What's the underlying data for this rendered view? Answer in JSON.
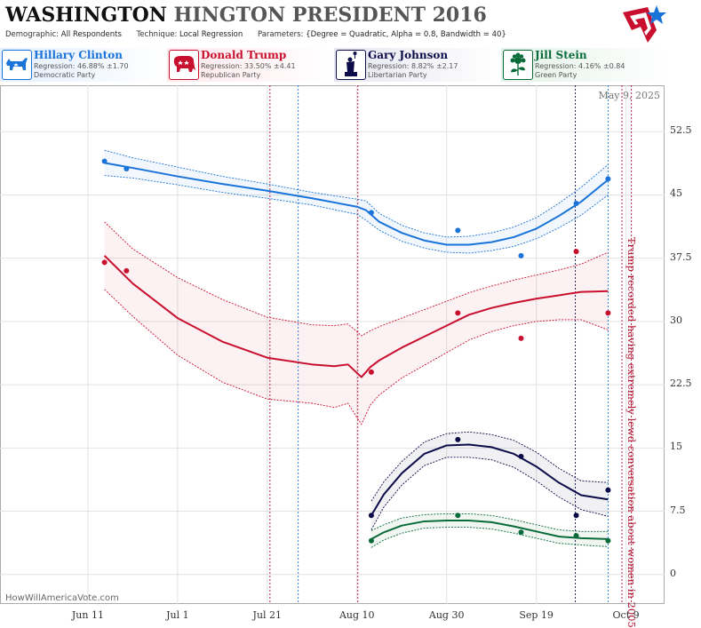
{
  "header": {
    "title_main": "WASHINGTON",
    "title_sub": "HINGTON PRESIDENT 2016",
    "demographic_label": "Demographic:",
    "demographic_value": "All Respondents",
    "technique_label": "Technique:",
    "technique_value": "Local Regression",
    "parameters_label": "Parameters:",
    "parameters_value": "{Degree = Quadratic, Alpha = 0.8, Bandwidth = 40}"
  },
  "legend": [
    {
      "name": "Hillary Clinton",
      "regression": "Regression: 46.88% ±1.70",
      "party": "Democratic Party",
      "color": "#1a73d8",
      "icon": "donkey-icon"
    },
    {
      "name": "Donald Trump",
      "regression": "Regression: 33.50% ±4.41",
      "party": "Republican Party",
      "color": "#c8102e",
      "icon": "elephant-icon"
    },
    {
      "name": "Gary Johnson",
      "regression": "Regression: 8.82% ±2.17",
      "party": "Libertarian Party",
      "color": "#0c0c4a",
      "icon": "statue-of-liberty-icon"
    },
    {
      "name": "Jill Stein",
      "regression": "Regression: 4.16% ±0.84",
      "party": "Green Party",
      "color": "#0a6b3a",
      "icon": "sunflower-icon"
    }
  ],
  "date_label": "May 9, 2025",
  "watermark": "HowWillAmericaVote.com",
  "annotation": "Trump recorded having extremely lewd conversation about women in 2005",
  "chart_data": {
    "type": "line",
    "x_ticks": [
      {
        "label": "Jun 11",
        "day": 0
      },
      {
        "label": "Jul 1",
        "day": 20
      },
      {
        "label": "Jul 21",
        "day": 40
      },
      {
        "label": "Aug 10",
        "day": 60
      },
      {
        "label": "Aug 30",
        "day": 80
      },
      {
        "label": "Sep 19",
        "day": 100
      },
      {
        "label": "Oct 9",
        "day": 120
      }
    ],
    "y_ticks": [
      0,
      7.5,
      15,
      22.5,
      30,
      37.5,
      45,
      52.5
    ],
    "ylim": [
      -3.5,
      58
    ],
    "xlim": [
      -19.6,
      128.6
    ],
    "vertical_markers": [
      {
        "day": 40.6,
        "color": "#b01030"
      },
      {
        "day": 46.9,
        "color": "#1a73d8"
      },
      {
        "day": 60.2,
        "color": "#b01030"
      },
      {
        "day": 108.7,
        "color": "#0c0c4a"
      },
      {
        "day": 116,
        "color": "#1a73d8"
      },
      {
        "day": 119.1,
        "color": "#b01030"
      },
      {
        "day": 121.2,
        "color": "#b01030"
      }
    ],
    "series": [
      {
        "name": "Hillary Clinton",
        "color": "#1a73d8",
        "points": [
          [
            3.7,
            49.0
          ],
          [
            8.6,
            48.1
          ],
          [
            63.2,
            42.9
          ],
          [
            82.5,
            40.8
          ],
          [
            96.6,
            37.8
          ],
          [
            108.9,
            44.0
          ],
          [
            116,
            46.9
          ]
        ],
        "fit": [
          [
            3.7,
            48.8
          ],
          [
            10,
            48.2
          ],
          [
            20,
            47.2
          ],
          [
            30,
            46.3
          ],
          [
            40,
            45.5
          ],
          [
            50,
            44.6
          ],
          [
            60,
            43.6
          ],
          [
            62,
            43.2
          ],
          [
            65,
            41.8
          ],
          [
            70,
            40.5
          ],
          [
            75,
            39.6
          ],
          [
            80,
            39.1
          ],
          [
            85,
            39.1
          ],
          [
            90,
            39.4
          ],
          [
            95,
            40.0
          ],
          [
            100,
            41.0
          ],
          [
            105,
            42.5
          ],
          [
            110,
            44.2
          ],
          [
            116,
            46.8
          ]
        ],
        "band": [
          [
            3.7,
            50.3,
            47.3
          ],
          [
            10,
            49.4,
            47.0
          ],
          [
            20,
            48.3,
            46.2
          ],
          [
            30,
            47.2,
            45.3
          ],
          [
            40,
            46.3,
            44.6
          ],
          [
            50,
            45.3,
            43.8
          ],
          [
            60,
            44.5,
            42.7
          ],
          [
            62,
            44.3,
            42.0
          ],
          [
            65,
            42.8,
            40.8
          ],
          [
            70,
            41.4,
            39.5
          ],
          [
            75,
            40.5,
            38.7
          ],
          [
            80,
            40.0,
            38.2
          ],
          [
            85,
            40.1,
            38.1
          ],
          [
            90,
            40.5,
            38.4
          ],
          [
            95,
            41.2,
            38.9
          ],
          [
            100,
            42.3,
            39.8
          ],
          [
            105,
            44.0,
            41.1
          ],
          [
            110,
            45.9,
            42.6
          ],
          [
            116,
            48.6,
            45.0
          ]
        ]
      },
      {
        "name": "Donald Trump",
        "color": "#c8102e",
        "points": [
          [
            3.7,
            37.0
          ],
          [
            8.6,
            36.0
          ],
          [
            63.2,
            24.0
          ],
          [
            82.5,
            31.0
          ],
          [
            96.6,
            28.0
          ],
          [
            108.9,
            38.3
          ],
          [
            116,
            31.0
          ]
        ],
        "fit": [
          [
            3.7,
            37.8
          ],
          [
            10,
            34.5
          ],
          [
            20,
            30.4
          ],
          [
            30,
            27.6
          ],
          [
            40,
            25.7
          ],
          [
            50,
            24.9
          ],
          [
            55,
            24.7
          ],
          [
            58,
            24.9
          ],
          [
            60,
            23.9
          ],
          [
            61,
            23.4
          ],
          [
            63,
            24.6
          ],
          [
            65,
            25.4
          ],
          [
            70,
            26.9
          ],
          [
            75,
            28.2
          ],
          [
            80,
            29.5
          ],
          [
            85,
            30.8
          ],
          [
            90,
            31.6
          ],
          [
            95,
            32.2
          ],
          [
            100,
            32.7
          ],
          [
            105,
            33.1
          ],
          [
            110,
            33.5
          ],
          [
            116,
            33.6
          ]
        ],
        "band": [
          [
            3.7,
            41.8,
            33.8
          ],
          [
            10,
            38.6,
            30.6
          ],
          [
            20,
            35.2,
            26.0
          ],
          [
            30,
            32.6,
            22.8
          ],
          [
            40,
            30.5,
            20.8
          ],
          [
            50,
            29.6,
            20.3
          ],
          [
            55,
            29.5,
            19.8
          ],
          [
            58,
            29.7,
            20.3
          ],
          [
            60,
            28.8,
            18.6
          ],
          [
            61,
            28.3,
            17.8
          ],
          [
            63,
            28.9,
            20.1
          ],
          [
            65,
            29.4,
            21.3
          ],
          [
            70,
            30.4,
            23.3
          ],
          [
            75,
            31.4,
            24.8
          ],
          [
            80,
            32.4,
            26.3
          ],
          [
            85,
            33.4,
            27.8
          ],
          [
            90,
            34.2,
            28.8
          ],
          [
            95,
            34.9,
            29.5
          ],
          [
            100,
            35.5,
            30.0
          ],
          [
            105,
            36.1,
            30.2
          ],
          [
            110,
            36.8,
            30.2
          ],
          [
            116,
            38.2,
            29.0
          ]
        ]
      },
      {
        "name": "Gary Johnson",
        "color": "#0c0c4a",
        "points": [
          [
            63.2,
            7.0
          ],
          [
            82.5,
            16.0
          ],
          [
            96.6,
            14.0
          ],
          [
            108.9,
            7.0
          ],
          [
            116,
            10.0
          ]
        ],
        "fit": [
          [
            63.2,
            7.0
          ],
          [
            66,
            9.5
          ],
          [
            70,
            12.0
          ],
          [
            75,
            14.3
          ],
          [
            80,
            15.3
          ],
          [
            85,
            15.4
          ],
          [
            90,
            15.1
          ],
          [
            95,
            14.3
          ],
          [
            100,
            12.8
          ],
          [
            105,
            10.9
          ],
          [
            110,
            9.4
          ],
          [
            116,
            8.9
          ]
        ],
        "band": [
          [
            63.2,
            8.7,
            5.3
          ],
          [
            66,
            11.0,
            8.0
          ],
          [
            70,
            13.4,
            10.6
          ],
          [
            75,
            15.7,
            12.9
          ],
          [
            80,
            16.7,
            13.9
          ],
          [
            85,
            16.9,
            13.9
          ],
          [
            90,
            16.6,
            13.6
          ],
          [
            95,
            15.9,
            12.7
          ],
          [
            100,
            14.5,
            11.1
          ],
          [
            105,
            12.6,
            9.2
          ],
          [
            110,
            11.1,
            7.7
          ],
          [
            116,
            10.9,
            6.9
          ]
        ]
      },
      {
        "name": "Jill Stein",
        "color": "#0a6b3a",
        "points": [
          [
            63.2,
            4.0
          ],
          [
            82.5,
            7.0
          ],
          [
            96.6,
            5.0
          ],
          [
            108.9,
            4.6
          ],
          [
            116,
            4.0
          ]
        ],
        "fit": [
          [
            63.2,
            4.2
          ],
          [
            66,
            5.0
          ],
          [
            70,
            5.8
          ],
          [
            75,
            6.3
          ],
          [
            80,
            6.4
          ],
          [
            85,
            6.4
          ],
          [
            90,
            6.2
          ],
          [
            95,
            5.7
          ],
          [
            100,
            5.1
          ],
          [
            105,
            4.5
          ],
          [
            110,
            4.3
          ],
          [
            116,
            4.2
          ]
        ],
        "band": [
          [
            63.2,
            5.2,
            3.2
          ],
          [
            66,
            5.9,
            4.1
          ],
          [
            70,
            6.7,
            4.9
          ],
          [
            75,
            7.1,
            5.5
          ],
          [
            80,
            7.2,
            5.6
          ],
          [
            85,
            7.2,
            5.6
          ],
          [
            90,
            7.0,
            5.4
          ],
          [
            95,
            6.5,
            4.9
          ],
          [
            100,
            5.9,
            4.3
          ],
          [
            105,
            5.3,
            3.7
          ],
          [
            110,
            5.1,
            3.5
          ],
          [
            116,
            5.1,
            3.3
          ]
        ]
      }
    ]
  }
}
